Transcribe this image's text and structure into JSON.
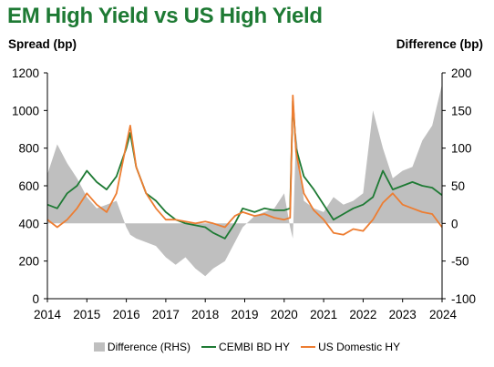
{
  "header": {
    "title": "EM High Yield vs US High Yield",
    "left_axis_title": "Spread (bp)",
    "right_axis_title": "Difference (bp)"
  },
  "colors": {
    "title": "#1e7a34",
    "difference": "#bfbfbf",
    "cembi": "#1e7a34",
    "us_hy": "#ed7d31"
  },
  "chart_data": {
    "type": "line",
    "title": "EM High Yield vs US High Yield",
    "ylabel": "Spread (bp)",
    "y2label": "Difference (bp)",
    "ylim": [
      0,
      1200
    ],
    "y2lim": [
      -100,
      200
    ],
    "xlim": [
      2014,
      2024
    ],
    "y_ticks": [
      "0",
      "200",
      "400",
      "600",
      "800",
      "1000",
      "1200"
    ],
    "y2_ticks": [
      "-100",
      "-50",
      "0",
      "50",
      "100",
      "150",
      "200"
    ],
    "x_ticks": [
      "2014",
      "2015",
      "2016",
      "2017",
      "2018",
      "2019",
      "2020",
      "2021",
      "2022",
      "2023",
      "2024"
    ],
    "legend_position": "bottom",
    "x": [
      2014.0,
      2014.25,
      2014.5,
      2014.75,
      2015.0,
      2015.25,
      2015.5,
      2015.75,
      2016.0,
      2016.1,
      2016.25,
      2016.5,
      2016.75,
      2017.0,
      2017.25,
      2017.5,
      2017.75,
      2018.0,
      2018.2,
      2018.5,
      2018.75,
      2018.95,
      2019.25,
      2019.5,
      2019.75,
      2020.0,
      2020.15,
      2020.22,
      2020.3,
      2020.5,
      2020.75,
      2021.0,
      2021.25,
      2021.5,
      2021.75,
      2022.0,
      2022.25,
      2022.5,
      2022.75,
      2023.0,
      2023.25,
      2023.5,
      2023.75,
      2024.0
    ],
    "series": [
      {
        "name": "Difference (RHS)",
        "kind": "area",
        "axis": "right",
        "values": [
          65,
          105,
          80,
          60,
          35,
          20,
          25,
          30,
          -5,
          -15,
          -20,
          -25,
          -30,
          -45,
          -55,
          -45,
          -60,
          -70,
          -60,
          -50,
          -25,
          -5,
          10,
          15,
          20,
          40,
          -5,
          -20,
          120,
          30,
          20,
          15,
          35,
          25,
          30,
          40,
          150,
          100,
          60,
          70,
          75,
          110,
          130,
          185
        ]
      },
      {
        "name": "CEMBI BD HY",
        "kind": "line",
        "axis": "left",
        "values": [
          500,
          480,
          560,
          600,
          680,
          620,
          580,
          650,
          800,
          880,
          700,
          560,
          520,
          460,
          420,
          400,
          390,
          380,
          350,
          320,
          400,
          480,
          460,
          480,
          470,
          470,
          480,
          1050,
          800,
          650,
          580,
          500,
          420,
          450,
          480,
          500,
          540,
          680,
          580,
          600,
          620,
          600,
          590,
          550
        ]
      },
      {
        "name": "US Domestic HY",
        "kind": "line",
        "axis": "left",
        "values": [
          420,
          380,
          420,
          480,
          560,
          500,
          460,
          560,
          820,
          920,
          700,
          560,
          480,
          420,
          420,
          410,
          400,
          410,
          400,
          380,
          440,
          460,
          440,
          450,
          430,
          420,
          430,
          1080,
          780,
          560,
          470,
          420,
          350,
          340,
          370,
          360,
          420,
          510,
          560,
          500,
          480,
          460,
          450,
          380
        ]
      }
    ]
  }
}
